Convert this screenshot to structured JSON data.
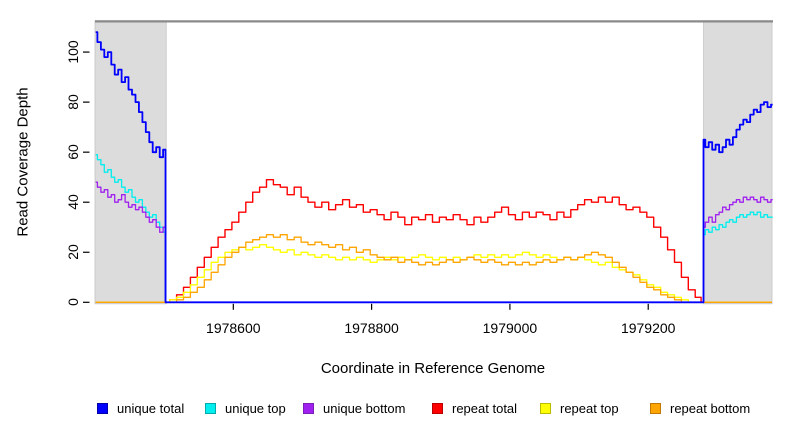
{
  "chart_data": {
    "type": "line",
    "title": "",
    "xlabel": "Coordinate in Reference Genome",
    "ylabel": "Read Coverage Depth",
    "xlim": [
      1978400,
      1979379
    ],
    "ylim": [
      0,
      112.5
    ],
    "grid": false,
    "legend_position": "bottom",
    "x_ticks": [
      1978600,
      1978800,
      1979000,
      1979200
    ],
    "y_ticks": [
      0,
      20,
      40,
      60,
      80,
      100
    ],
    "region_boundaries": [
      1978503,
      1979280
    ],
    "background": {
      "color": "#dcdcdc",
      "border_color": "#c4c4c4",
      "regions": [
        [
          1978400,
          1978503
        ],
        [
          1979280,
          1979379
        ]
      ]
    },
    "top_border_color": "#8a8a8a",
    "legend": [
      {
        "label": "unique total",
        "fill": "#0000ff",
        "border": "#0000aa"
      },
      {
        "label": "unique top",
        "fill": "#00eeee",
        "border": "#00aaaa"
      },
      {
        "label": "unique bottom",
        "fill": "#a020f0",
        "border": "#7a1fb8"
      },
      {
        "label": "repeat total",
        "fill": "#ff0000",
        "border": "#bb0000"
      },
      {
        "label": "repeat top",
        "fill": "#ffff00",
        "border": "#bbbb00"
      },
      {
        "label": "repeat bottom",
        "fill": "#ffa500",
        "border": "#c07800"
      }
    ],
    "series": [
      {
        "name": "unique top",
        "color": "#00eeee",
        "width": 1.3,
        "segments": [
          {
            "start": 1978401,
            "step": 5,
            "values": [
              59,
              57,
              55,
              52,
              53,
              50,
              48,
              49,
              46,
              44,
              45,
              42,
              40,
              41,
              38,
              36,
              34,
              35,
              32,
              30,
              28
            ]
          },
          {
            "start": 1978503,
            "step": 777,
            "values": [
              0,
              0
            ]
          },
          {
            "start": 1979280,
            "step": 5,
            "values": [
              27,
              29,
              28,
              30,
              29,
              31,
              30,
              32,
              33,
              32,
              34,
              35,
              34,
              35,
              36,
              35,
              36,
              34,
              35,
              34,
              34
            ]
          }
        ]
      },
      {
        "name": "unique bottom",
        "color": "#a020f0",
        "width": 1.3,
        "segments": [
          {
            "start": 1978401,
            "step": 5,
            "values": [
              48,
              46,
              44,
              45,
              42,
              43,
              40,
              41,
              43,
              40,
              38,
              39,
              37,
              38,
              36,
              34,
              32,
              33,
              30,
              28,
              30
            ]
          },
          {
            "start": 1978503,
            "step": 777,
            "values": [
              0,
              0
            ]
          },
          {
            "start": 1979280,
            "step": 5,
            "values": [
              30,
              32,
              34,
              32,
              35,
              36,
              38,
              37,
              39,
              40,
              41,
              40,
              42,
              41,
              42,
              41,
              40,
              42,
              41,
              40,
              41
            ]
          }
        ]
      },
      {
        "name": "repeat total",
        "color": "#ff0000",
        "width": 1.4,
        "segments": [
          {
            "start": 1978401,
            "step": 102,
            "values": [
              0,
              0
            ]
          },
          {
            "start": 1978503,
            "step": 10,
            "values": [
              0,
              1,
              3,
              6,
              10,
              14,
              18,
              22,
              26,
              29,
              32,
              36,
              40,
              44,
              46,
              49,
              47,
              46,
              43,
              46,
              42,
              40,
              38,
              40,
              37,
              39,
              41,
              38,
              39,
              36,
              37,
              35,
              33,
              36,
              34,
              31,
              34,
              33,
              35,
              32,
              34,
              33,
              35,
              33,
              31,
              34,
              32,
              34,
              36,
              38,
              35,
              33,
              36,
              34,
              36,
              35,
              33,
              36,
              34,
              37,
              39,
              41,
              40,
              42,
              40,
              42,
              39,
              37,
              38,
              36,
              34,
              30,
              26,
              21,
              16,
              10,
              5,
              2
            ]
          },
          {
            "start": 1979280,
            "step": 99,
            "values": [
              0,
              0
            ]
          }
        ]
      },
      {
        "name": "repeat top",
        "color": "#ffff00",
        "width": 1.3,
        "segments": [
          {
            "start": 1978401,
            "step": 102,
            "values": [
              0,
              0
            ]
          },
          {
            "start": 1978503,
            "step": 10,
            "values": [
              0,
              1,
              2,
              4,
              7,
              10,
              13,
              16,
              18,
              20,
              21,
              22,
              21,
              22,
              23,
              22,
              21,
              20,
              21,
              19,
              20,
              19,
              18,
              19,
              18,
              17,
              18,
              17,
              18,
              17,
              16,
              17,
              18,
              17,
              18,
              17,
              18,
              19,
              18,
              17,
              18,
              17,
              18,
              17,
              18,
              19,
              18,
              19,
              18,
              19,
              18,
              19,
              20,
              19,
              18,
              19,
              18,
              17,
              18,
              17,
              18,
              17,
              16,
              15,
              16,
              14,
              13,
              12,
              11,
              9,
              7,
              6,
              4,
              3,
              2,
              1,
              0,
              0
            ]
          },
          {
            "start": 1979280,
            "step": 99,
            "values": [
              0,
              0
            ]
          }
        ]
      },
      {
        "name": "repeat bottom",
        "color": "#ffa500",
        "width": 1.3,
        "segments": [
          {
            "start": 1978401,
            "step": 102,
            "values": [
              0,
              0
            ]
          },
          {
            "start": 1978503,
            "step": 10,
            "values": [
              0,
              0,
              1,
              2,
              4,
              6,
              9,
              12,
              15,
              18,
              20,
              22,
              24,
              25,
              26,
              27,
              26,
              27,
              25,
              26,
              24,
              23,
              24,
              23,
              22,
              23,
              21,
              22,
              20,
              21,
              19,
              18,
              17,
              18,
              16,
              17,
              16,
              15,
              16,
              15,
              16,
              17,
              16,
              17,
              18,
              17,
              16,
              17,
              16,
              15,
              16,
              15,
              16,
              15,
              16,
              17,
              16,
              17,
              18,
              17,
              18,
              19,
              20,
              19,
              18,
              16,
              14,
              12,
              10,
              8,
              6,
              5,
              3,
              2,
              1,
              0,
              0,
              0
            ]
          },
          {
            "start": 1979280,
            "step": 99,
            "values": [
              0,
              0
            ]
          }
        ]
      },
      {
        "name": "unique total",
        "color": "#0000ff",
        "width": 1.8,
        "segments": [
          {
            "start": 1978401,
            "step": 5,
            "values": [
              108,
              104,
              101,
              98,
              100,
              95,
              91,
              93,
              88,
              90,
              85,
              83,
              80,
              76,
              72,
              68,
              64,
              60,
              62,
              58,
              61
            ]
          },
          {
            "start": 1978503,
            "step": 777,
            "values": [
              0,
              0
            ]
          },
          {
            "start": 1979280,
            "step": 5,
            "values": [
              65,
              62,
              64,
              61,
              63,
              60,
              62,
              65,
              63,
              66,
              69,
              71,
              73,
              72,
              75,
              77,
              76,
              79,
              80,
              78,
              79
            ]
          }
        ]
      }
    ]
  },
  "layout_labels": {
    "x_axis_title": "Coordinate in Reference Genome",
    "y_axis_title": "Read Coverage Depth"
  }
}
